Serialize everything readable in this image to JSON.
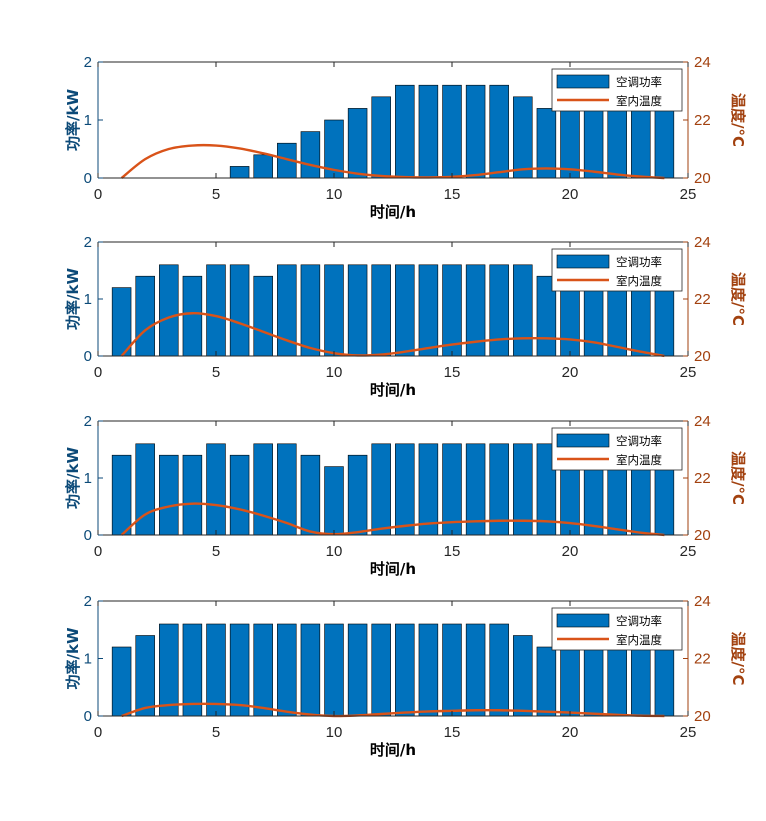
{
  "figure": {
    "colors": {
      "bar": "#0072BD",
      "bar_edge": "#000000",
      "line": "#D95319",
      "left_axis": "#0C4A78",
      "right_axis": "#A2410F",
      "axis": "#262626"
    }
  },
  "chart_data": [
    {
      "type": "bar",
      "x": [
        1,
        2,
        3,
        4,
        5,
        6,
        7,
        8,
        9,
        10,
        11,
        12,
        13,
        14,
        15,
        16,
        17,
        18,
        19,
        20,
        21,
        22,
        23,
        24
      ],
      "series": [
        {
          "name": "空调功率",
          "axis": "left",
          "type": "bar",
          "values": [
            0,
            0,
            0,
            0,
            0,
            0.2,
            0.4,
            0.6,
            0.8,
            1.0,
            1.2,
            1.4,
            1.6,
            1.6,
            1.6,
            1.6,
            1.6,
            1.4,
            1.2,
            1.2,
            1.2,
            1.2,
            1.2,
            1.2
          ]
        },
        {
          "name": "室内温度",
          "axis": "right",
          "type": "line",
          "values": [
            20.0,
            20.65,
            21.0,
            21.12,
            21.12,
            21.02,
            20.85,
            20.65,
            20.45,
            20.28,
            20.15,
            20.07,
            20.03,
            20.02,
            20.04,
            20.1,
            20.2,
            20.3,
            20.33,
            20.3,
            20.22,
            20.12,
            20.05,
            20.0
          ]
        }
      ],
      "xlabel": "时间/h",
      "ylabel_left": "功率/kW",
      "ylabel_right": "温度/°C",
      "xlim": [
        0,
        25
      ],
      "ylim_left": [
        0,
        2
      ],
      "ylim_right": [
        20,
        24
      ],
      "xticks": [
        "0",
        "5",
        "10",
        "15",
        "20",
        "25"
      ],
      "yticks_left": [
        "0",
        "1",
        "2"
      ],
      "yticks_right": [
        "20",
        "22",
        "24"
      ],
      "legend": [
        "空调功率",
        "室内温度"
      ],
      "legend_position": "top-right"
    },
    {
      "type": "bar",
      "x": [
        1,
        2,
        3,
        4,
        5,
        6,
        7,
        8,
        9,
        10,
        11,
        12,
        13,
        14,
        15,
        16,
        17,
        18,
        19,
        20,
        21,
        22,
        23,
        24
      ],
      "series": [
        {
          "name": "空调功率",
          "axis": "left",
          "type": "bar",
          "values": [
            1.2,
            1.4,
            1.6,
            1.4,
            1.6,
            1.6,
            1.4,
            1.6,
            1.6,
            1.6,
            1.6,
            1.6,
            1.6,
            1.6,
            1.6,
            1.6,
            1.6,
            1.6,
            1.4,
            1.4,
            1.4,
            1.4,
            1.4,
            1.4
          ]
        },
        {
          "name": "室内温度",
          "axis": "right",
          "type": "line",
          "values": [
            20.0,
            20.9,
            21.35,
            21.5,
            21.4,
            21.15,
            20.85,
            20.55,
            20.28,
            20.1,
            20.02,
            20.05,
            20.15,
            20.28,
            20.4,
            20.5,
            20.58,
            20.62,
            20.62,
            20.58,
            20.48,
            20.32,
            20.15,
            20.0
          ]
        }
      ],
      "xlabel": "时间/h",
      "ylabel_left": "功率/kW",
      "ylabel_right": "温度/°C",
      "xlim": [
        0,
        25
      ],
      "ylim_left": [
        0,
        2
      ],
      "ylim_right": [
        20,
        24
      ],
      "xticks": [
        "0",
        "5",
        "10",
        "15",
        "20",
        "25"
      ],
      "yticks_left": [
        "0",
        "1",
        "2"
      ],
      "yticks_right": [
        "20",
        "22",
        "24"
      ],
      "legend": [
        "空调功率",
        "室内温度"
      ],
      "legend_position": "top-right"
    },
    {
      "type": "bar",
      "x": [
        1,
        2,
        3,
        4,
        5,
        6,
        7,
        8,
        9,
        10,
        11,
        12,
        13,
        14,
        15,
        16,
        17,
        18,
        19,
        20,
        21,
        22,
        23,
        24
      ],
      "series": [
        {
          "name": "空调功率",
          "axis": "left",
          "type": "bar",
          "values": [
            1.4,
            1.6,
            1.4,
            1.4,
            1.6,
            1.4,
            1.6,
            1.6,
            1.4,
            1.2,
            1.4,
            1.6,
            1.6,
            1.6,
            1.6,
            1.6,
            1.6,
            1.6,
            1.6,
            1.6,
            1.6,
            1.6,
            1.6,
            1.6
          ]
        },
        {
          "name": "室内温度",
          "axis": "right",
          "type": "line",
          "values": [
            20.0,
            20.72,
            21.0,
            21.1,
            21.05,
            20.9,
            20.68,
            20.42,
            20.12,
            20.03,
            20.1,
            20.22,
            20.32,
            20.4,
            20.45,
            20.48,
            20.5,
            20.5,
            20.48,
            20.42,
            20.32,
            20.2,
            20.08,
            20.0
          ]
        }
      ],
      "xlabel": "时间/h",
      "ylabel_left": "功率/kW",
      "ylabel_right": "温度/°C",
      "xlim": [
        0,
        25
      ],
      "ylim_left": [
        0,
        2
      ],
      "ylim_right": [
        20,
        24
      ],
      "xticks": [
        "0",
        "5",
        "10",
        "15",
        "20",
        "25"
      ],
      "yticks_left": [
        "0",
        "1",
        "2"
      ],
      "yticks_right": [
        "20",
        "22",
        "24"
      ],
      "legend": [
        "空调功率",
        "室内温度"
      ],
      "legend_position": "top-right"
    },
    {
      "type": "bar",
      "x": [
        1,
        2,
        3,
        4,
        5,
        6,
        7,
        8,
        9,
        10,
        11,
        12,
        13,
        14,
        15,
        16,
        17,
        18,
        19,
        20,
        21,
        22,
        23,
        24
      ],
      "series": [
        {
          "name": "空调功率",
          "axis": "left",
          "type": "bar",
          "values": [
            1.2,
            1.4,
            1.6,
            1.6,
            1.6,
            1.6,
            1.6,
            1.6,
            1.6,
            1.6,
            1.6,
            1.6,
            1.6,
            1.6,
            1.6,
            1.6,
            1.6,
            1.4,
            1.2,
            1.2,
            1.2,
            1.2,
            1.2,
            1.2
          ]
        },
        {
          "name": "室内温度",
          "axis": "right",
          "type": "line",
          "values": [
            20.0,
            20.28,
            20.38,
            20.42,
            20.42,
            20.38,
            20.28,
            20.15,
            20.05,
            20.0,
            20.02,
            20.07,
            20.12,
            20.16,
            20.18,
            20.2,
            20.2,
            20.18,
            20.15,
            20.12,
            20.08,
            20.04,
            20.01,
            20.0
          ]
        }
      ],
      "xlabel": "时间/h",
      "ylabel_left": "功率/kW",
      "ylabel_right": "温度/°C",
      "xlim": [
        0,
        25
      ],
      "ylim_left": [
        0,
        2
      ],
      "ylim_right": [
        20,
        24
      ],
      "xticks": [
        "0",
        "5",
        "10",
        "15",
        "20",
        "25"
      ],
      "yticks_left": [
        "0",
        "1",
        "2"
      ],
      "yticks_right": [
        "20",
        "22",
        "24"
      ],
      "legend": [
        "空调功率",
        "室内温度"
      ],
      "legend_position": "top-right"
    }
  ]
}
